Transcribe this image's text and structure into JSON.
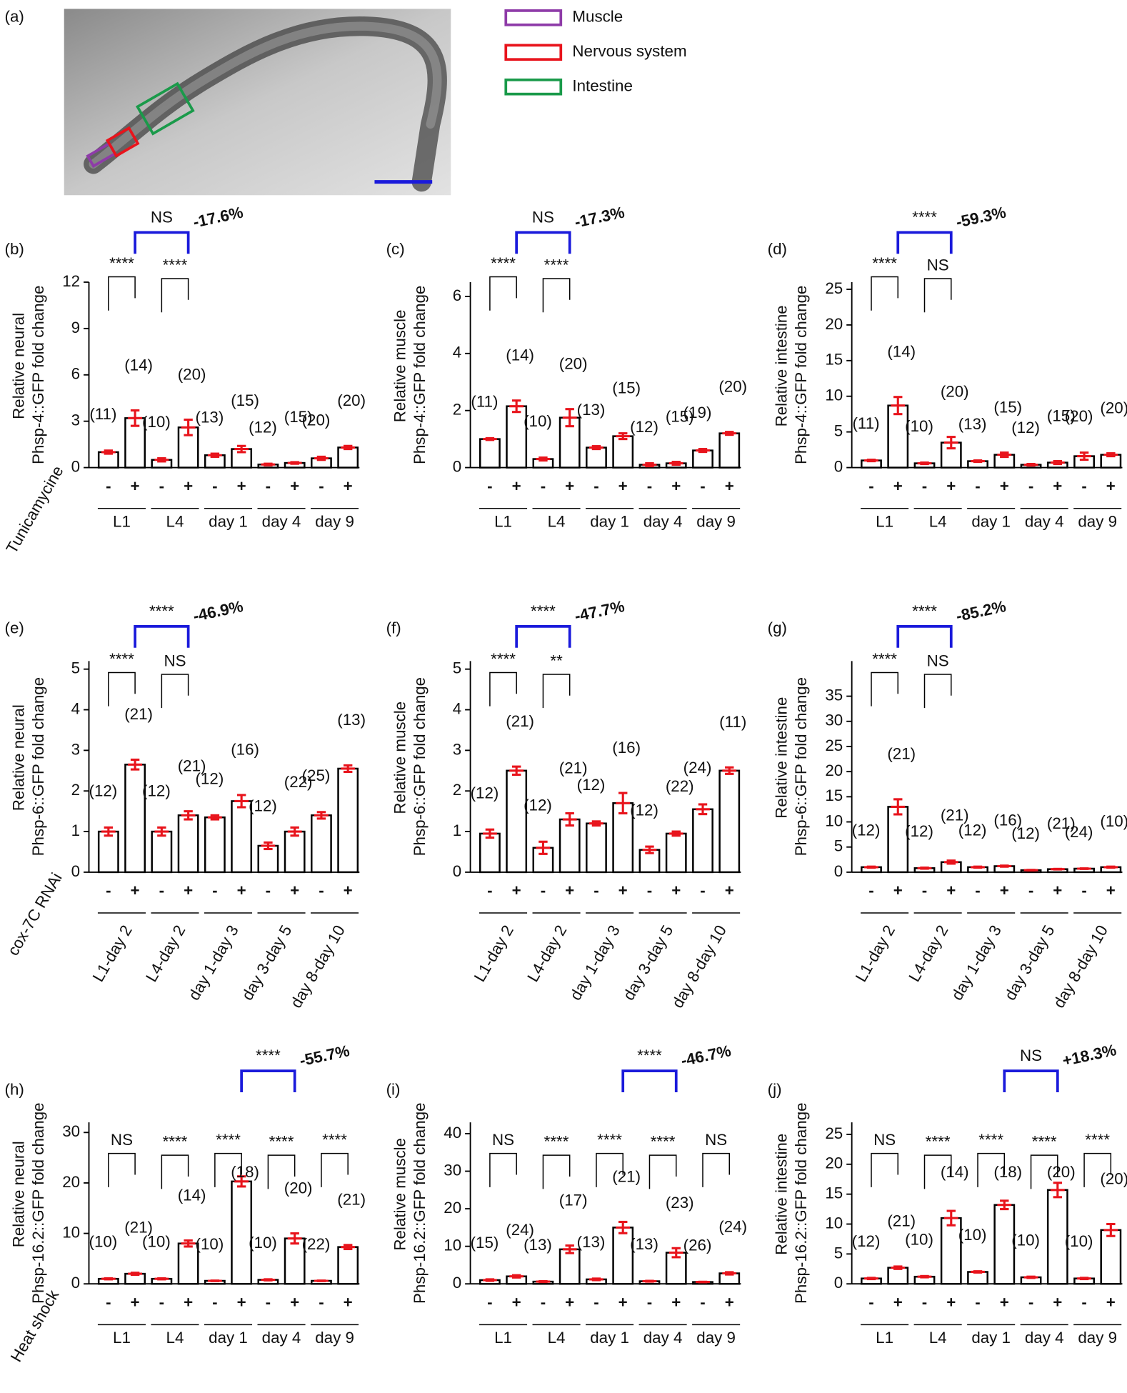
{
  "panel_a": {
    "label": "(a)",
    "legend": [
      {
        "name": "Muscle",
        "color": "#8e3ba8"
      },
      {
        "name": "Nervous system",
        "color": "#e8141c"
      },
      {
        "name": "Intestine",
        "color": "#1a9a4a"
      }
    ],
    "scale_bar_color": "#1a1adb"
  },
  "chart_data": [
    {
      "type": "bar",
      "panel": "(b)",
      "ylabel": [
        "Relative neural",
        "Phsp-4::GFP fold change"
      ],
      "groups": [
        "L1",
        "L4",
        "day 1",
        "day 4",
        "day 9"
      ],
      "signs": [
        "-",
        "+"
      ],
      "sign_color": "#e8141c",
      "treatment": "Tunicamycine",
      "treatment_color": "#e8141c",
      "values": [
        1.0,
        3.2,
        0.5,
        2.6,
        0.8,
        1.2,
        0.2,
        0.3,
        0.6,
        1.3
      ],
      "errors": [
        0.1,
        0.5,
        0.1,
        0.5,
        0.1,
        0.2,
        0.05,
        0.05,
        0.1,
        0.1
      ],
      "n_labels": [
        "(11)",
        "(14)",
        "(10)",
        "(20)",
        "(13)",
        "(15)",
        "(12)",
        "(15)",
        "(20)",
        "(20)"
      ],
      "sig_labels": [
        "****",
        "****",
        null,
        null,
        null
      ],
      "compare": {
        "label": "NS",
        "change": "-17.6%"
      },
      "ylim": [
        0,
        12
      ],
      "yticks": [
        0,
        3,
        6,
        9,
        12
      ],
      "bar_edge": "#000000",
      "error_color": "#e8141c",
      "compare_color": "#1a1adb",
      "sig_color": "#e8141c"
    },
    {
      "type": "bar",
      "panel": "(c)",
      "ylabel": [
        "Relative muscle",
        "Phsp-4::GFP fold change"
      ],
      "groups": [
        "L1",
        "L4",
        "day 1",
        "day 4",
        "day 9"
      ],
      "signs": [
        "-",
        "+"
      ],
      "sign_color": "#e8141c",
      "values": [
        1.0,
        2.15,
        0.3,
        1.75,
        0.7,
        1.1,
        0.1,
        0.15,
        0.6,
        1.2
      ],
      "errors": [
        0.03,
        0.2,
        0.05,
        0.3,
        0.05,
        0.1,
        0.05,
        0.05,
        0.05,
        0.05
      ],
      "n_labels": [
        "(11)",
        "(14)",
        "(10)",
        "(20)",
        "(13)",
        "(15)",
        "(12)",
        "(15)",
        "(19)",
        "(20)"
      ],
      "sig_labels": [
        "****",
        "****",
        null,
        null,
        null
      ],
      "compare": {
        "label": "NS",
        "change": "-17.3%"
      },
      "ylim": [
        0,
        6.5
      ],
      "yticks": [
        0,
        2,
        4,
        6
      ],
      "bar_edge": "#000000",
      "error_color": "#e8141c",
      "compare_color": "#1a1adb",
      "sig_color": "#e8141c"
    },
    {
      "type": "bar",
      "panel": "(d)",
      "ylabel": [
        "Relative intestine",
        "Phsp-4::GFP fold change"
      ],
      "groups": [
        "L1",
        "L4",
        "day 1",
        "day 4",
        "day 9"
      ],
      "signs": [
        "-",
        "+"
      ],
      "sign_color": "#e8141c",
      "values": [
        1.0,
        8.7,
        0.6,
        3.5,
        0.9,
        1.8,
        0.4,
        0.7,
        1.6,
        1.8
      ],
      "errors": [
        0.1,
        1.2,
        0.1,
        0.8,
        0.1,
        0.3,
        0.1,
        0.2,
        0.5,
        0.2
      ],
      "n_labels": [
        "(11)",
        "(14)",
        "(10)",
        "(20)",
        "(13)",
        "(15)",
        "(12)",
        "(15)",
        "(20)",
        "(20)"
      ],
      "sig_labels": [
        "****",
        "NS",
        null,
        null,
        null
      ],
      "compare": {
        "label": "****",
        "change": "-59.3%"
      },
      "ylim": [
        0,
        26
      ],
      "yticks": [
        0,
        5,
        10,
        15,
        20,
        25
      ],
      "bar_edge": "#000000",
      "error_color": "#e8141c",
      "compare_color": "#1a1adb",
      "sig_color": "#e8141c"
    },
    {
      "type": "bar",
      "panel": "(e)",
      "ylabel": [
        "Relative neural",
        "Phsp-6::GFP fold change"
      ],
      "groups": [
        "L1-day 2",
        "L4-day 2",
        "day 1-day 3",
        "day 3-day 5",
        "day 8-day 10"
      ],
      "signs": [
        "-",
        "+"
      ],
      "sign_color": "#1a1adb",
      "treatment": "cox-7C RNAi",
      "treatment_color": "#1a1adb",
      "values": [
        1.0,
        2.65,
        1.0,
        1.4,
        1.35,
        1.75,
        0.65,
        1.0,
        1.4,
        2.55
      ],
      "errors": [
        0.1,
        0.12,
        0.1,
        0.1,
        0.05,
        0.15,
        0.08,
        0.1,
        0.08,
        0.08
      ],
      "n_labels": [
        "(12)",
        "(21)",
        "(12)",
        "(21)",
        "(12)",
        "(16)",
        "(12)",
        "(22)",
        "(25)",
        "(13)"
      ],
      "sig_labels": [
        "****",
        "NS",
        null,
        null,
        null
      ],
      "compare": {
        "label": "****",
        "change": "-46.9%"
      },
      "ylim": [
        0,
        5.2
      ],
      "yticks": [
        0,
        1,
        2,
        3,
        4,
        5
      ],
      "bar_edge": "#000000",
      "error_color": "#e8141c",
      "compare_color": "#1a1adb",
      "sig_color": "#e8141c"
    },
    {
      "type": "bar",
      "panel": "(f)",
      "ylabel": [
        "Relative muscle",
        "Phsp-6::GFP fold change"
      ],
      "groups": [
        "L1-day 2",
        "L4-day 2",
        "day 1-day 3",
        "day 3-day 5",
        "day 8-day 10"
      ],
      "signs": [
        "-",
        "+"
      ],
      "sign_color": "#1a1adb",
      "values": [
        0.95,
        2.5,
        0.6,
        1.3,
        1.2,
        1.7,
        0.55,
        0.95,
        1.55,
        2.5
      ],
      "errors": [
        0.1,
        0.1,
        0.15,
        0.15,
        0.05,
        0.25,
        0.08,
        0.05,
        0.12,
        0.08
      ],
      "n_labels": [
        "(12)",
        "(21)",
        "(12)",
        "(21)",
        "(12)",
        "(16)",
        "(12)",
        "(22)",
        "(24)",
        "(11)"
      ],
      "sig_labels": [
        "****",
        "**",
        null,
        null,
        null
      ],
      "compare": {
        "label": "****",
        "change": "-47.7%"
      },
      "ylim": [
        0,
        5.2
      ],
      "yticks": [
        0,
        1,
        2,
        3,
        4,
        5
      ],
      "bar_edge": "#000000",
      "error_color": "#e8141c",
      "compare_color": "#1a1adb",
      "sig_color": "#e8141c"
    },
    {
      "type": "bar",
      "panel": "(g)",
      "ylabel": [
        "Relative intestine",
        "Phsp-6::GFP fold change"
      ],
      "groups": [
        "L1-day 2",
        "L4-day 2",
        "day 1-day 3",
        "day 3-day 5",
        "day 8-day 10"
      ],
      "signs": [
        "-",
        "+"
      ],
      "sign_color": "#1a1adb",
      "values": [
        1.0,
        13,
        0.8,
        2.0,
        1.0,
        1.2,
        0.4,
        0.6,
        0.7,
        1.0
      ],
      "errors": [
        0.1,
        1.5,
        0.1,
        0.3,
        0.1,
        0.1,
        0.05,
        0.05,
        0.05,
        0.1
      ],
      "n_labels": [
        "(12)",
        "(21)",
        "(12)",
        "(21)",
        "(12)",
        "(16)",
        "(12)",
        "(21)",
        "(24)",
        "(10)"
      ],
      "sig_labels": [
        "****",
        "NS",
        null,
        null,
        null
      ],
      "compare": {
        "label": "****",
        "change": "-85.2%"
      },
      "ylim": [
        0,
        42
      ],
      "yticks": [
        0,
        5,
        10,
        15,
        20,
        25,
        30,
        35
      ],
      "bar_edge": "#000000",
      "error_color": "#e8141c",
      "compare_color": "#1a1adb",
      "sig_color": "#e8141c"
    },
    {
      "type": "bar",
      "panel": "(h)",
      "ylabel": [
        "Relative neural",
        "Phsp-16.2::GFP fold change"
      ],
      "groups": [
        "L1",
        "L4",
        "day 1",
        "day 4",
        "day 9"
      ],
      "signs": [
        "-",
        "+"
      ],
      "sign_color": "#e8141c",
      "treatment": "Heat shock",
      "treatment_color": "#e8141c",
      "values": [
        1.0,
        2.0,
        1.0,
        8.0,
        0.6,
        20.3,
        0.8,
        9.0,
        0.6,
        7.3
      ],
      "errors": [
        0.1,
        0.2,
        0.1,
        0.6,
        0.05,
        1.0,
        0.1,
        1.0,
        0.05,
        0.4
      ],
      "n_labels": [
        "(10)",
        "(21)",
        "(10)",
        "(14)",
        "(10)",
        "(18)",
        "(10)",
        "(20)",
        "(22)",
        "(21)"
      ],
      "sig_labels": [
        "NS",
        "****",
        "****",
        "****",
        "****"
      ],
      "compare": {
        "label": "****",
        "change": "-55.7%"
      },
      "ylim": [
        0,
        32
      ],
      "yticks": [
        0,
        10,
        20,
        30
      ],
      "bar_edge": "#000000",
      "error_color": "#e8141c",
      "compare_color": "#1a1adb",
      "sig_color": "#e8141c"
    },
    {
      "type": "bar",
      "panel": "(i)",
      "ylabel": [
        "Relative muscle",
        "Phsp-16.2::GFP fold change"
      ],
      "groups": [
        "L1",
        "L4",
        "day 1",
        "day 4",
        "day 9"
      ],
      "signs": [
        "-",
        "+"
      ],
      "sign_color": "#e8141c",
      "values": [
        1.0,
        2.0,
        0.6,
        9.2,
        1.2,
        15.0,
        0.7,
        8.3,
        0.5,
        2.8
      ],
      "errors": [
        0.2,
        0.3,
        0.1,
        1.0,
        0.2,
        1.5,
        0.1,
        1.2,
        0.05,
        0.3
      ],
      "n_labels": [
        "(15)",
        "(24)",
        "(13)",
        "(17)",
        "(13)",
        "(21)",
        "(13)",
        "(23)",
        "(26)",
        "(24)"
      ],
      "sig_labels": [
        "NS",
        "****",
        "****",
        "****",
        "NS"
      ],
      "compare": {
        "label": "****",
        "change": "-46.7%"
      },
      "ylim": [
        0,
        43
      ],
      "yticks": [
        0,
        10,
        20,
        30,
        40
      ],
      "bar_edge": "#000000",
      "error_color": "#e8141c",
      "compare_color": "#1a1adb",
      "sig_color": "#e8141c"
    },
    {
      "type": "bar",
      "panel": "(j)",
      "ylabel": [
        "Relative intestine",
        "Phsp-16.2::GFP fold change"
      ],
      "groups": [
        "L1",
        "L4",
        "day 1",
        "day 4",
        "day 9"
      ],
      "signs": [
        "-",
        "+"
      ],
      "sign_color": "#e8141c",
      "values": [
        0.9,
        2.7,
        1.2,
        11.0,
        2.0,
        13.2,
        1.1,
        15.7,
        0.9,
        9.0
      ],
      "errors": [
        0.1,
        0.2,
        0.1,
        1.2,
        0.1,
        0.7,
        0.1,
        1.2,
        0.1,
        1.0
      ],
      "n_labels": [
        "(12)",
        "(21)",
        "(10)",
        "(14)",
        "(10)",
        "(18)",
        "(10)",
        "(20)",
        "(10)",
        "(20)"
      ],
      "sig_labels": [
        "NS",
        "****",
        "****",
        "****",
        "****"
      ],
      "compare": {
        "label": "NS",
        "change": "+18.3%"
      },
      "ylim": [
        0,
        27
      ],
      "yticks": [
        0,
        5,
        10,
        15,
        20,
        25
      ],
      "bar_edge": "#000000",
      "error_color": "#e8141c",
      "compare_color": "#1a1adb",
      "sig_color": "#e8141c"
    }
  ]
}
